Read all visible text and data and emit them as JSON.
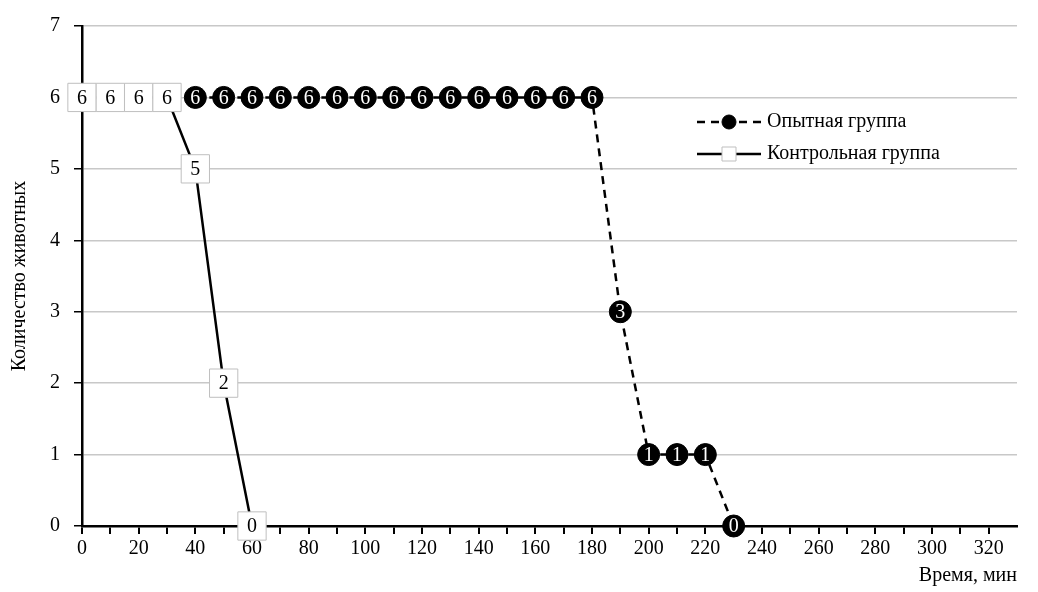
{
  "chart_data": {
    "type": "line",
    "xlabel": "Время, мин",
    "ylabel": "Количество животных",
    "xlim": [
      0,
      330
    ],
    "xticks": [
      0,
      {
        "value": 10,
        "label": null
      },
      20,
      {
        "value": 30,
        "label": null
      },
      40,
      {
        "value": 50,
        "label": null
      },
      60,
      {
        "value": 70,
        "label": null
      },
      80,
      {
        "value": 90,
        "label": null
      },
      100,
      {
        "value": 110,
        "label": null
      },
      120,
      {
        "value": 130,
        "label": null
      },
      140,
      {
        "value": 150,
        "label": null
      },
      160,
      {
        "value": 170,
        "label": null
      },
      180,
      {
        "value": 190,
        "label": null
      },
      200,
      {
        "value": 210,
        "label": null
      },
      220,
      {
        "value": 230,
        "label": null
      },
      240,
      {
        "value": 250,
        "label": null
      },
      260,
      {
        "value": 270,
        "label": null
      },
      280,
      {
        "value": 290,
        "label": null
      },
      300,
      {
        "value": 310,
        "label": null
      },
      320
    ],
    "ylim": [
      0,
      7
    ],
    "yticks": [
      0,
      1,
      2,
      3,
      4,
      5,
      6,
      7
    ],
    "grid": "y",
    "legend": "right",
    "data_labels": true,
    "series": [
      {
        "name": "Опытная группа",
        "color": "#000000",
        "marker": "circle",
        "line_style": "dashed",
        "x": [
          40,
          50,
          60,
          70,
          80,
          90,
          100,
          110,
          120,
          130,
          140,
          150,
          160,
          170,
          180,
          190,
          200,
          210,
          220,
          230
        ],
        "values": [
          6,
          6,
          6,
          6,
          6,
          6,
          6,
          6,
          6,
          6,
          6,
          6,
          6,
          6,
          6,
          3,
          1,
          1,
          1,
          0
        ]
      },
      {
        "name": "Контрольная группа",
        "color": "#000000",
        "marker": "square",
        "line_style": "solid",
        "x": [
          0,
          10,
          20,
          30,
          40,
          50,
          60
        ],
        "values": [
          6,
          6,
          6,
          6,
          5,
          2,
          0
        ]
      }
    ]
  }
}
